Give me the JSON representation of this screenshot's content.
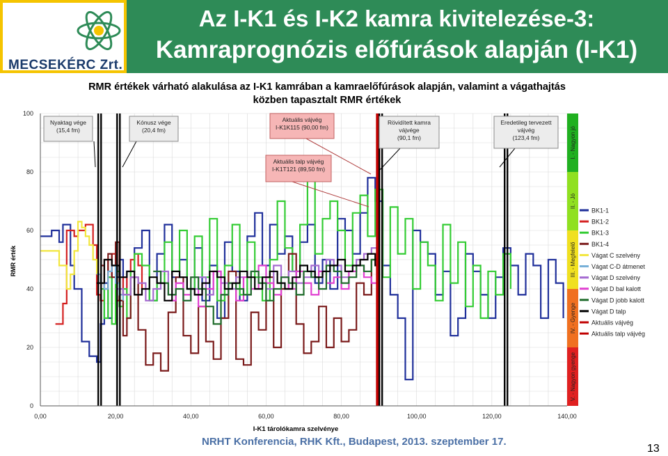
{
  "header": {
    "title_line1": "Az I-K1 és I-K2 kamra kivitelezése-3:",
    "title_line2": "Kamraprognózis előfúrások alapján (I-K1)",
    "logo_text": "MECSEKÉRC Zrt."
  },
  "footer": {
    "conference": "NRHT Konferencia, RHK Kft., Budapest, 2013. szeptember 17.",
    "page_number": "13"
  },
  "chart_data": {
    "type": "line",
    "title_line1": "RMR értékek várható alakulása az I-K1 kamrában a kamraelőfúrások alapján, valamint a vágathajtás",
    "title_line2": "közben tapasztalt RMR értékek",
    "xlabel": "I-K1 tárolókamra szelvénye",
    "ylabel": "RMR érték",
    "xlim": [
      0,
      140
    ],
    "ylim": [
      0,
      100
    ],
    "xticks": [
      "0,00",
      "20,00",
      "40,00",
      "60,00",
      "80,00",
      "100,00",
      "120,00",
      "140,00"
    ],
    "xtick_values": [
      0,
      20,
      40,
      60,
      80,
      100,
      120,
      140
    ],
    "yticks": [
      "0",
      "20",
      "40",
      "60",
      "80",
      "100"
    ],
    "ytick_values": [
      0,
      20,
      40,
      60,
      80,
      100
    ],
    "grid": true,
    "rating_bands": [
      {
        "label": "V. - Nagyon gyenge",
        "from": 0,
        "to": 20,
        "color": "#e02020"
      },
      {
        "label": "IV. - Gyenge",
        "from": 20,
        "to": 40,
        "color": "#f07020"
      },
      {
        "label": "III. - Megfelelő",
        "from": 40,
        "to": 60,
        "color": "#f0e020"
      },
      {
        "label": "II. - Jó",
        "from": 60,
        "to": 80,
        "color": "#90e020"
      },
      {
        "label": "I. - Nagyon jó",
        "from": 80,
        "to": 100,
        "color": "#20b020"
      }
    ],
    "vertical_markers": [
      {
        "x": 15.4,
        "color": "#000000",
        "label": "Nyaktag vége (15,4 fm)"
      },
      {
        "x": 20.4,
        "color": "#000000",
        "label": "Kónusz vége (20,4 fm)"
      },
      {
        "x": 89.5,
        "color": "#c00000",
        "label": "Aktuális talp vájvég I-K1T121 (89,50 fm)"
      },
      {
        "x": 90.0,
        "color": "#c00000",
        "label": "Aktuális vájvég I-K1K115 (90,00 fm)"
      },
      {
        "x": 90.1,
        "color": "#000000",
        "label": "Rövidített kamra vájvége (90,1 fm)"
      },
      {
        "x": 123.4,
        "color": "#000000",
        "label": "Eredetileg tervezett vájvég (123,4 fm)"
      }
    ],
    "callouts": [
      {
        "lines": [
          "Nyaktag vége",
          "(15,4 fm)"
        ],
        "style": "gray"
      },
      {
        "lines": [
          "Kónusz vége",
          "(20,4 fm)"
        ],
        "style": "gray"
      },
      {
        "lines": [
          "Aktuális vájvég",
          "I-K1K115 (90,00 fm)"
        ],
        "style": "pink"
      },
      {
        "lines": [
          "Rövidített kamra",
          "vájvége",
          "(90,1 fm)"
        ],
        "style": "gray"
      },
      {
        "lines": [
          "Eredetileg tervezett",
          "vájvég",
          "(123,4 fm)"
        ],
        "style": "gray"
      },
      {
        "lines": [
          "Aktuális talp vájvég",
          "I-K1T121 (89,50 fm)"
        ],
        "style": "pink"
      }
    ],
    "series": [
      {
        "name": "BK1-1",
        "color": "#1f2f9a",
        "step": true,
        "x": [
          0,
          3,
          5,
          6,
          8,
          9,
          11,
          13,
          15,
          16,
          17,
          18,
          19,
          20,
          21,
          22,
          23,
          25,
          27,
          29,
          31,
          33,
          35,
          37,
          39,
          41,
          43,
          45,
          47,
          49,
          51,
          53,
          55,
          57,
          59,
          61,
          63,
          65,
          67,
          69,
          71,
          73,
          75,
          77,
          79,
          81,
          83,
          85,
          87,
          89,
          91,
          93,
          95,
          97,
          99,
          101,
          103,
          105,
          107,
          109,
          111,
          113,
          115,
          117,
          119,
          121,
          123,
          125,
          127,
          129,
          131,
          133,
          135,
          137,
          139
        ],
        "y": [
          58,
          60,
          56,
          62,
          48,
          40,
          22,
          17,
          15,
          28,
          42,
          30,
          48,
          44,
          50,
          38,
          46,
          54,
          60,
          36,
          52,
          62,
          44,
          50,
          40,
          54,
          36,
          48,
          30,
          56,
          46,
          36,
          58,
          66,
          48,
          62,
          52,
          58,
          46,
          56,
          62,
          42,
          50,
          40,
          64,
          60,
          52,
          66,
          78,
          70,
          48,
          38,
          30,
          9,
          60,
          56,
          52,
          38,
          46,
          24,
          30,
          52,
          46,
          38,
          30,
          44,
          54,
          48,
          38,
          52,
          48,
          30,
          50,
          42,
          30
        ]
      },
      {
        "name": "BK1-2",
        "color": "#d42020",
        "step": true,
        "x": [
          4,
          6,
          7,
          9,
          10,
          12,
          14,
          15,
          16,
          17,
          18,
          19,
          20,
          21,
          22,
          23,
          24,
          25,
          26,
          27
        ],
        "y": [
          28,
          35,
          60,
          58,
          60,
          62,
          55,
          38,
          36,
          50,
          44,
          52,
          36,
          38,
          44,
          38,
          50,
          52,
          48,
          40
        ]
      },
      {
        "name": "BK1-3",
        "color": "#33cc33",
        "step": true,
        "x": [
          16,
          17,
          18,
          19,
          20,
          21,
          22,
          23,
          24,
          25,
          27,
          29,
          31,
          33,
          35,
          37,
          39,
          41,
          43,
          45,
          47,
          49,
          51,
          53,
          55,
          57,
          59,
          61,
          63,
          65,
          67,
          69,
          71,
          73,
          75,
          77,
          79,
          81,
          83,
          85,
          87,
          89,
          91,
          93,
          95,
          97,
          99,
          101,
          103,
          105,
          107,
          109,
          111,
          113,
          115,
          117,
          119,
          121,
          123,
          125
        ],
        "y": [
          40,
          30,
          44,
          28,
          46,
          34,
          40,
          30,
          46,
          52,
          48,
          36,
          42,
          56,
          46,
          60,
          40,
          58,
          44,
          64,
          36,
          48,
          62,
          38,
          56,
          44,
          36,
          50,
          70,
          54,
          46,
          62,
          78,
          52,
          64,
          70,
          60,
          48,
          66,
          72,
          58,
          74,
          44,
          68,
          52,
          64,
          40,
          56,
          48,
          36,
          62,
          42,
          56,
          34,
          48,
          30,
          46,
          38,
          52,
          40
        ]
      },
      {
        "name": "BK1-4",
        "color": "#7a1a1a",
        "step": true,
        "x": [
          16,
          17,
          18,
          19,
          20,
          21,
          22,
          23,
          24,
          26,
          28,
          30,
          32,
          34,
          36,
          38,
          40,
          42,
          44,
          46,
          48,
          50,
          52,
          54,
          56,
          58,
          60,
          62,
          64,
          66,
          68,
          70,
          72,
          74,
          76,
          78,
          80,
          82,
          84,
          86,
          88,
          90
        ],
        "y": [
          48,
          40,
          52,
          44,
          56,
          36,
          24,
          30,
          44,
          26,
          14,
          18,
          12,
          32,
          44,
          24,
          18,
          34,
          22,
          16,
          30,
          46,
          16,
          14,
          32,
          26,
          44,
          20,
          40,
          52,
          28,
          18,
          22,
          34,
          20,
          30,
          22,
          26,
          42,
          38,
          50,
          44
        ]
      },
      {
        "name": "Vágat C szelvény",
        "color": "#f2e63c",
        "step": true,
        "x": [
          0,
          3,
          5,
          7,
          8,
          9,
          10,
          11,
          12,
          13,
          14,
          15
        ],
        "y": [
          53,
          53,
          48,
          40,
          45,
          53,
          63,
          61,
          58,
          55,
          50,
          45
        ]
      },
      {
        "name": "Vágat C-D átmenet",
        "color": "#77b0d8",
        "step": true,
        "x": [
          15,
          16,
          17,
          18,
          19,
          20,
          21,
          22
        ],
        "y": [
          45,
          42,
          40,
          46,
          48,
          42,
          38,
          36
        ]
      },
      {
        "name": "Vágat D szelvény",
        "color": "#a56bd1",
        "step": true,
        "x": [
          20,
          22,
          24,
          26,
          28,
          30,
          32,
          34,
          36,
          38,
          40,
          42,
          44,
          46,
          48,
          50,
          52,
          54,
          56,
          58,
          60,
          62,
          64,
          66,
          68,
          70,
          72,
          74,
          76,
          78,
          80,
          82,
          84,
          86,
          88,
          90
        ],
        "y": [
          40,
          38,
          44,
          42,
          36,
          40,
          46,
          38,
          42,
          36,
          40,
          44,
          38,
          46,
          42,
          40,
          44,
          38,
          46,
          42,
          40,
          48,
          44,
          46,
          42,
          44,
          48,
          46,
          50,
          48,
          44,
          46,
          50,
          52,
          54,
          52
        ]
      },
      {
        "name": "Vágat D bal kalott",
        "color": "#e040d0",
        "step": true,
        "x": [
          34,
          36,
          38,
          40,
          42,
          44,
          46,
          48,
          50,
          52,
          54,
          56,
          58,
          60,
          62,
          64,
          66,
          68,
          70,
          72,
          74,
          76,
          78,
          80,
          82,
          84,
          86,
          88,
          90
        ],
        "y": [
          36,
          42,
          38,
          44,
          34,
          40,
          46,
          38,
          42,
          36,
          44,
          40,
          48,
          42,
          38,
          44,
          40,
          46,
          42,
          38,
          46,
          42,
          44,
          40,
          46,
          48,
          44,
          42,
          46
        ]
      },
      {
        "name": "Vágat D jobb kalott",
        "color": "#1e6b2a",
        "step": true,
        "x": [
          30,
          32,
          34,
          36,
          38,
          40,
          42,
          44,
          46,
          48,
          50,
          52,
          54,
          56,
          58,
          60,
          62,
          64,
          66,
          68,
          70,
          72,
          74,
          76,
          78,
          80,
          82,
          84,
          86,
          88,
          90
        ],
        "y": [
          46,
          42,
          38,
          40,
          36,
          44,
          40,
          34,
          28,
          38,
          42,
          40,
          38,
          46,
          42,
          36,
          40,
          44,
          42,
          38,
          46,
          44,
          40,
          48,
          46,
          42,
          44,
          48,
          46,
          50,
          48
        ]
      },
      {
        "name": "Vágat D talp",
        "color": "#000000",
        "step": true,
        "x": [
          15,
          17,
          19,
          21,
          23,
          25,
          27,
          29,
          31,
          33,
          35,
          37,
          39,
          41,
          43,
          45,
          47,
          49,
          51,
          53,
          55,
          57,
          59,
          61,
          63,
          65,
          67,
          69,
          71,
          73,
          75,
          77,
          79,
          81,
          83,
          85,
          87,
          89,
          90
        ],
        "y": [
          42,
          50,
          48,
          44,
          46,
          38,
          40,
          44,
          42,
          36,
          46,
          44,
          40,
          38,
          42,
          46,
          44,
          40,
          42,
          46,
          44,
          40,
          44,
          46,
          42,
          40,
          44,
          48,
          46,
          44,
          46,
          48,
          50,
          46,
          48,
          50,
          52,
          48,
          52
        ]
      },
      {
        "name": "Aktuális vájvég",
        "color": "#c00000",
        "step": false,
        "x": [],
        "y": []
      },
      {
        "name": "Aktuális talp vájvég",
        "color": "#c00000",
        "step": false,
        "x": [],
        "y": []
      }
    ]
  }
}
